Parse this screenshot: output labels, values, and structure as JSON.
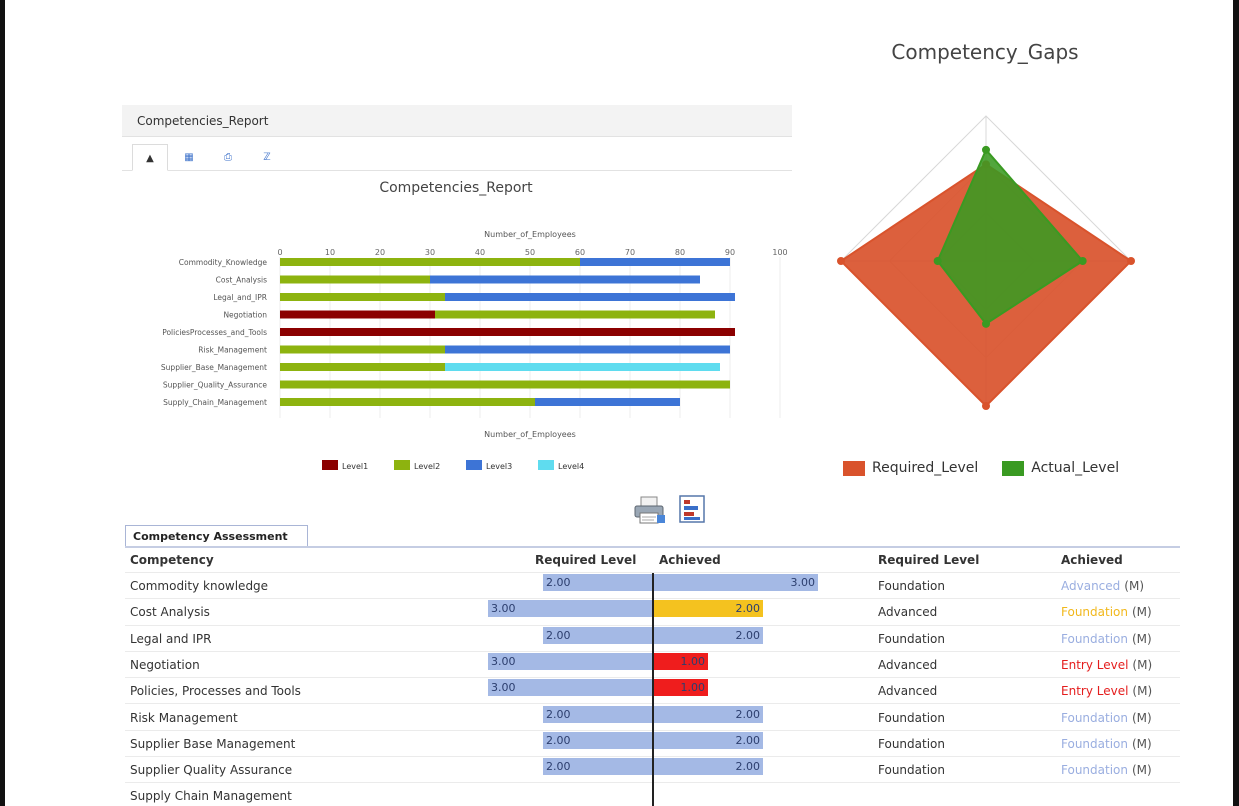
{
  "report": {
    "header_title": "Competencies_Report",
    "tab_icons": [
      "bar-chart-icon",
      "table-icon",
      "print-icon",
      "sort-icon"
    ],
    "tab_glyphs": [
      "▲",
      "▦",
      "⎙",
      "ℤ"
    ]
  },
  "chart_data": [
    {
      "type": "bar",
      "orientation": "horizontal",
      "stacked": true,
      "title": "Competencies_Report",
      "xlabel": "Number_of_Employees",
      "ylabel": "",
      "xlim": [
        0,
        100
      ],
      "xticks": [
        "0",
        "10",
        "20",
        "30",
        "40",
        "50",
        "60",
        "70",
        "80",
        "90",
        "100"
      ],
      "categories": [
        "Commodity_Knowledge",
        "Cost_Analysis",
        "Legal_and_IPR",
        "Negotiation",
        "PoliciesProcesses_and_Tools",
        "Risk_Management",
        "Supplier_Base_Management",
        "Supplier_Quality_Assurance",
        "Supply_Chain_Management"
      ],
      "series": [
        {
          "name": "Level1",
          "color": "#8b0000",
          "values": [
            0,
            0,
            0,
            31,
            91,
            0,
            0,
            0,
            0
          ]
        },
        {
          "name": "Level2",
          "color": "#8db30f",
          "values": [
            60,
            30,
            33,
            56,
            0,
            33,
            33,
            90,
            51
          ]
        },
        {
          "name": "Level3",
          "color": "#3d74d6",
          "values": [
            30,
            54,
            58,
            0,
            0,
            57,
            0,
            0,
            29
          ]
        },
        {
          "name": "Level4",
          "color": "#5fdcef",
          "values": [
            0,
            0,
            0,
            0,
            0,
            0,
            55,
            0,
            0
          ]
        }
      ],
      "grid": true,
      "legend_position": "bottom"
    },
    {
      "type": "radar",
      "title": "Competency_Gaps",
      "axes": 4,
      "max": 3,
      "series": [
        {
          "name": "Required_Level",
          "color": "#d9532c",
          "values": [
            2,
            3,
            3,
            3
          ]
        },
        {
          "name": "Actual_Level",
          "color": "#3a9a22",
          "values": [
            2.3,
            2.0,
            1.3,
            1.0
          ]
        }
      ],
      "legend_position": "bottom"
    }
  ],
  "toolbar": {
    "print_icon": "printer-icon",
    "export_icon": "export-chart-icon"
  },
  "assessment": {
    "tab_label": "Competency Assessment",
    "columns": {
      "competency": "Competency",
      "required_bar": "Required Level",
      "achieved_bar": "Achieved",
      "required_text": "Required Level",
      "achieved_text": "Achieved"
    },
    "max_level": 3,
    "rows": [
      {
        "name": "Commodity knowledge",
        "required": "2.00",
        "required_value": 2,
        "achieved": "3.00",
        "achieved_value": 3,
        "achieved_color": "#a4b9e5",
        "required_text": "Foundation",
        "achieved_text": "Advanced",
        "achieved_text_color": "#9aaee0",
        "suffix": "(M)"
      },
      {
        "name": "Cost Analysis",
        "required": "3.00",
        "required_value": 3,
        "achieved": "2.00",
        "achieved_value": 2,
        "achieved_color": "#f4c21f",
        "required_text": "Advanced",
        "achieved_text": "Foundation",
        "achieved_text_color": "#f1b81c",
        "suffix": "(M)"
      },
      {
        "name": "Legal and IPR",
        "required": "2.00",
        "required_value": 2,
        "achieved": "2.00",
        "achieved_value": 2,
        "achieved_color": "#a4b9e5",
        "required_text": "Foundation",
        "achieved_text": "Foundation",
        "achieved_text_color": "#9aaee0",
        "suffix": "(M)"
      },
      {
        "name": "Negotiation",
        "required": "3.00",
        "required_value": 3,
        "achieved": "1.00",
        "achieved_value": 1,
        "achieved_color": "#ef1d1d",
        "required_text": "Advanced",
        "achieved_text": "Entry Level",
        "achieved_text_color": "#e41d1d",
        "suffix": "(M)"
      },
      {
        "name": "Policies, Processes and Tools",
        "required": "3.00",
        "required_value": 3,
        "achieved": "1.00",
        "achieved_value": 1,
        "achieved_color": "#ef1d1d",
        "required_text": "Advanced",
        "achieved_text": "Entry Level",
        "achieved_text_color": "#e41d1d",
        "suffix": "(M)"
      },
      {
        "name": "Risk Management",
        "required": "2.00",
        "required_value": 2,
        "achieved": "2.00",
        "achieved_value": 2,
        "achieved_color": "#a4b9e5",
        "required_text": "Foundation",
        "achieved_text": "Foundation",
        "achieved_text_color": "#9aaee0",
        "suffix": "(M)"
      },
      {
        "name": "Supplier Base Management",
        "required": "2.00",
        "required_value": 2,
        "achieved": "2.00",
        "achieved_value": 2,
        "achieved_color": "#a4b9e5",
        "required_text": "Foundation",
        "achieved_text": "Foundation",
        "achieved_text_color": "#9aaee0",
        "suffix": "(M)"
      },
      {
        "name": "Supplier Quality Assurance",
        "required": "2.00",
        "required_value": 2,
        "achieved": "2.00",
        "achieved_value": 2,
        "achieved_color": "#a4b9e5",
        "required_text": "Foundation",
        "achieved_text": "Foundation",
        "achieved_text_color": "#9aaee0",
        "suffix": "(M)"
      },
      {
        "name": "Supply Chain Management",
        "required": "",
        "required_value": 0,
        "achieved": "",
        "achieved_value": 0,
        "achieved_color": "#a4b9e5",
        "required_text": "",
        "achieved_text": "",
        "achieved_text_color": "#9aaee0",
        "suffix": ""
      }
    ]
  }
}
